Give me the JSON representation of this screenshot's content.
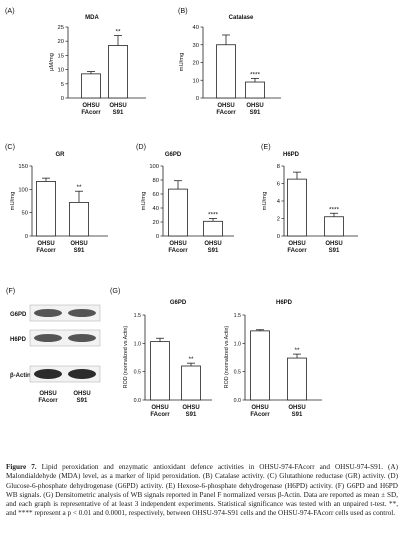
{
  "chart_data": [
    {
      "panel": "(A)",
      "type": "bar",
      "title": "MDA",
      "ylabel": "µM/mg",
      "categories": [
        [
          "OHSU",
          "FAcorr"
        ],
        [
          "OHSU",
          "S91"
        ]
      ],
      "values": [
        8.5,
        18.5
      ],
      "errors": [
        0.8,
        3.5
      ],
      "significance": [
        "",
        "**"
      ],
      "ylim": [
        0,
        25
      ],
      "yticks": [
        "0",
        "5",
        "10",
        "15",
        "20",
        "25"
      ]
    },
    {
      "panel": "(B)",
      "type": "bar",
      "title": "Catalase",
      "ylabel": "mU/mg",
      "categories": [
        [
          "OHSU",
          "FAcorr"
        ],
        [
          "OHSU",
          "S91"
        ]
      ],
      "values": [
        30,
        9
      ],
      "errors": [
        5.5,
        2
      ],
      "significance": [
        "",
        "****"
      ],
      "ylim": [
        0,
        40
      ],
      "yticks": [
        "0",
        "10",
        "20",
        "30",
        "40"
      ]
    },
    {
      "panel": "(C)",
      "type": "bar",
      "title": "GR",
      "ylabel": "mU/mg",
      "categories": [
        [
          "OHSU",
          "FAcorr"
        ],
        [
          "OHSU",
          "S91"
        ]
      ],
      "values": [
        117,
        72
      ],
      "errors": [
        7,
        24
      ],
      "significance": [
        "",
        "**"
      ],
      "ylim": [
        0,
        150
      ],
      "yticks": [
        "0",
        "50",
        "100",
        "150"
      ]
    },
    {
      "panel": "(D)",
      "type": "bar",
      "title": "G6PD",
      "ylabel": "mU/mg",
      "categories": [
        [
          "OHSU",
          "FAcorr"
        ],
        [
          "OHSU",
          "S91"
        ]
      ],
      "values": [
        67,
        21
      ],
      "errors": [
        12,
        4
      ],
      "significance": [
        "",
        "****"
      ],
      "ylim": [
        0,
        100
      ],
      "yticks": [
        "0",
        "20",
        "40",
        "60",
        "80",
        "100"
      ]
    },
    {
      "panel": "(E)",
      "type": "bar",
      "title": "H6PD",
      "ylabel": "mU/mg",
      "categories": [
        [
          "OHSU",
          "FAcorr"
        ],
        [
          "OHSU",
          "S91"
        ]
      ],
      "values": [
        6.5,
        2.2
      ],
      "errors": [
        0.8,
        0.4
      ],
      "significance": [
        "",
        "****"
      ],
      "ylim": [
        0,
        8
      ],
      "yticks": [
        "0",
        "2",
        "4",
        "6",
        "8"
      ]
    },
    {
      "panel": "(G)",
      "type": "bar",
      "title": "G6PD",
      "ylabel": "ROD (normalized vs Actin)",
      "categories": [
        [
          "OHSU",
          "FAcorr"
        ],
        [
          "OHSU",
          "S91"
        ]
      ],
      "values": [
        1.03,
        0.6
      ],
      "errors": [
        0.06,
        0.05
      ],
      "significance": [
        "",
        "**"
      ],
      "ylim": [
        0,
        1.5
      ],
      "yticks": [
        "0.0",
        "0.5",
        "1.0",
        "1.5"
      ]
    },
    {
      "panel": "",
      "type": "bar",
      "title": "H6PD",
      "ylabel": "ROD (normalized vs Actin)",
      "categories": [
        [
          "OHSU",
          "FAcorr"
        ],
        [
          "OHSU",
          "S91"
        ]
      ],
      "values": [
        1.22,
        0.74
      ],
      "errors": [
        0.02,
        0.07
      ],
      "significance": [
        "",
        "**"
      ],
      "ylim": [
        0,
        1.5
      ],
      "yticks": [
        "0.0",
        "0.5",
        "1.0",
        "1.5"
      ]
    }
  ],
  "western_blot": {
    "panel": "(F)",
    "rows": [
      "G6PD",
      "H6PD",
      "β-Actin"
    ],
    "lanes": [
      [
        "OHSU",
        "FAcorr"
      ],
      [
        "OHSU",
        "S91"
      ]
    ]
  },
  "caption": {
    "lead": "Figure 7.",
    "text": "Lipid peroxidation and enzymatic antioxidant defence activities in OHSU-974-FAcorr and OHSU-974-S91. (A) Malondialdehyde (MDA) level, as a marker of lipid peroxidation. (B) Catalase activity. (C) Glutathione reductase (GR) activity. (D) Glucose-6-phosphate dehydrogenase (G6PD) activity. (E) Hexose-6-phosphate dehydrogenase (H6PD) activity. (F) G6PD and H6PD WB signals. (G) Densitometric analysis of WB signals reported in Panel F normalized versus β-Actin. Data are reported as mean ± SD, and each graph is representative of at least 3 independent experiments. Statistical significance was tested with an unpaired t-test. **, and **** represent a p < 0.01 and 0.0001, respectively, between OHSU-974-S91 cells and the OHSU-974-FAcorr cells used as control."
  }
}
